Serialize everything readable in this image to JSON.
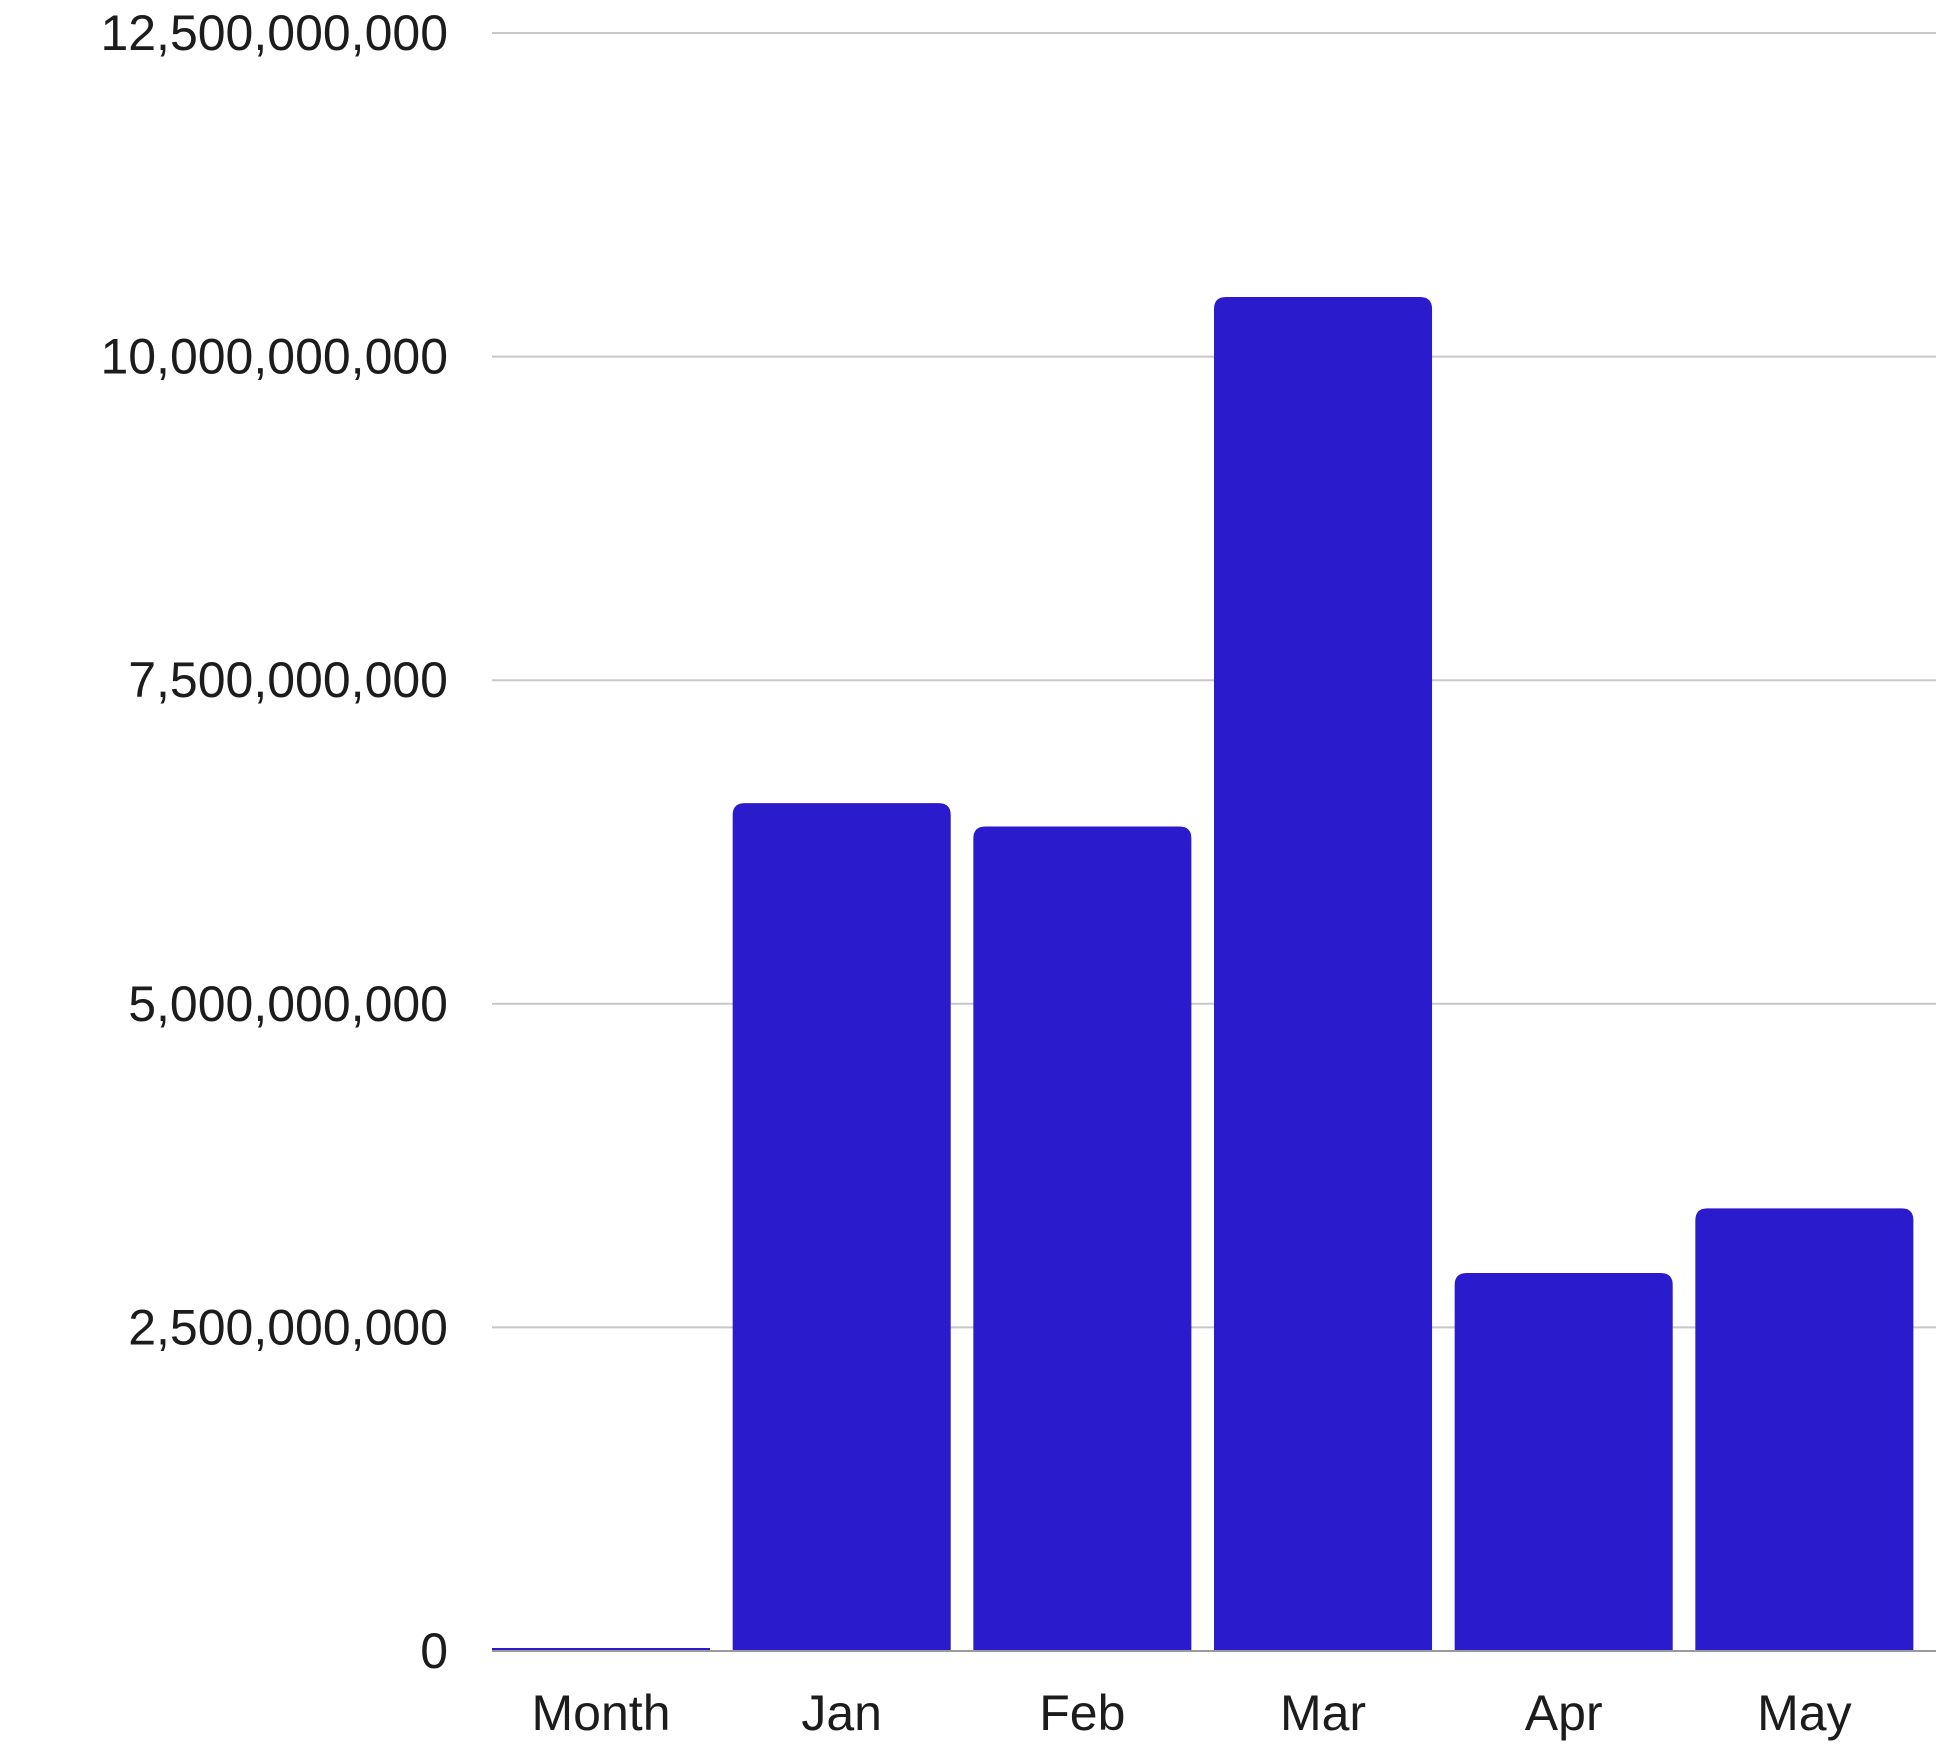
{
  "chart_data": {
    "type": "bar",
    "title": "",
    "xlabel": "",
    "ylabel": "",
    "categories": [
      "Month",
      "Jan",
      "Feb",
      "Mar",
      "Apr",
      "May"
    ],
    "values": [
      0,
      6550000000,
      6370000000,
      10460000000,
      2920000000,
      3420000000
    ],
    "ylim": [
      0,
      12500000000
    ],
    "yticks": [
      0,
      2500000000,
      5000000000,
      7500000000,
      10000000000,
      12500000000
    ],
    "ytick_labels": [
      "0",
      "2,500,000,000",
      "5,000,000,000",
      "7,500,000,000",
      "10,000,000,000",
      "12,500,000,000"
    ],
    "grid": true,
    "legend": "none",
    "colors": {
      "bar": "#2a1bcc",
      "grid": "#c8c8c8",
      "text": "#1c1c1c"
    }
  }
}
